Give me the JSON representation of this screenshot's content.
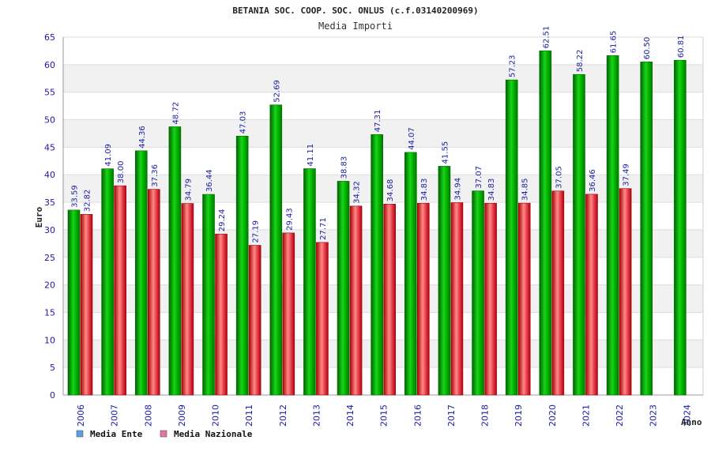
{
  "chart_data": {
    "type": "bar",
    "title": "BETANIA SOC. COOP. SOC. ONLUS (c.f.03140200969)",
    "subtitle": "Media Importi",
    "xlabel": "Anno",
    "ylabel": "Euro",
    "ylim": [
      0,
      65
    ],
    "yticks": [
      0,
      5,
      10,
      15,
      20,
      25,
      30,
      35,
      40,
      45,
      50,
      55,
      60,
      65
    ],
    "grid": true,
    "legend_position": "bottom-left",
    "categories": [
      "2006",
      "2007",
      "2008",
      "2009",
      "2010",
      "2011",
      "2012",
      "2013",
      "2014",
      "2015",
      "2016",
      "2017",
      "2018",
      "2019",
      "2020",
      "2021",
      "2022",
      "2023",
      "2024"
    ],
    "series": [
      {
        "name": "Media Ente",
        "color": "#00b400",
        "legend_color": "#5aa0e6",
        "values": [
          33.59,
          41.09,
          44.36,
          48.72,
          36.44,
          47.03,
          52.69,
          41.11,
          38.83,
          47.31,
          44.07,
          41.55,
          37.07,
          57.23,
          62.51,
          58.22,
          61.65,
          60.5,
          60.81
        ],
        "labels": [
          "33.59",
          "41.09",
          "44.36",
          "48.72",
          "36.44",
          "47.03",
          "52.69",
          "41.11",
          "38.83",
          "47.31",
          "44.07",
          "41.55",
          "37.07",
          "57.23",
          "62.51",
          "58.22",
          "61.65",
          "60.50",
          "60.81"
        ]
      },
      {
        "name": "Media Nazionale",
        "color": "#e0202a",
        "legend_color": "#e673a6",
        "values": [
          32.82,
          38.0,
          37.36,
          34.79,
          29.24,
          27.19,
          29.43,
          27.71,
          34.32,
          34.68,
          34.83,
          34.94,
          34.83,
          34.85,
          37.05,
          36.46,
          37.49,
          null,
          null
        ],
        "labels": [
          "32.82",
          "38.00",
          "37.36",
          "34.79",
          "29.24",
          "27.19",
          "29.43",
          "27.71",
          "34.32",
          "34.68",
          "34.83",
          "34.94",
          "34.83",
          "34.85",
          "37.05",
          "36.46",
          "37.49",
          "",
          ""
        ]
      }
    ]
  }
}
